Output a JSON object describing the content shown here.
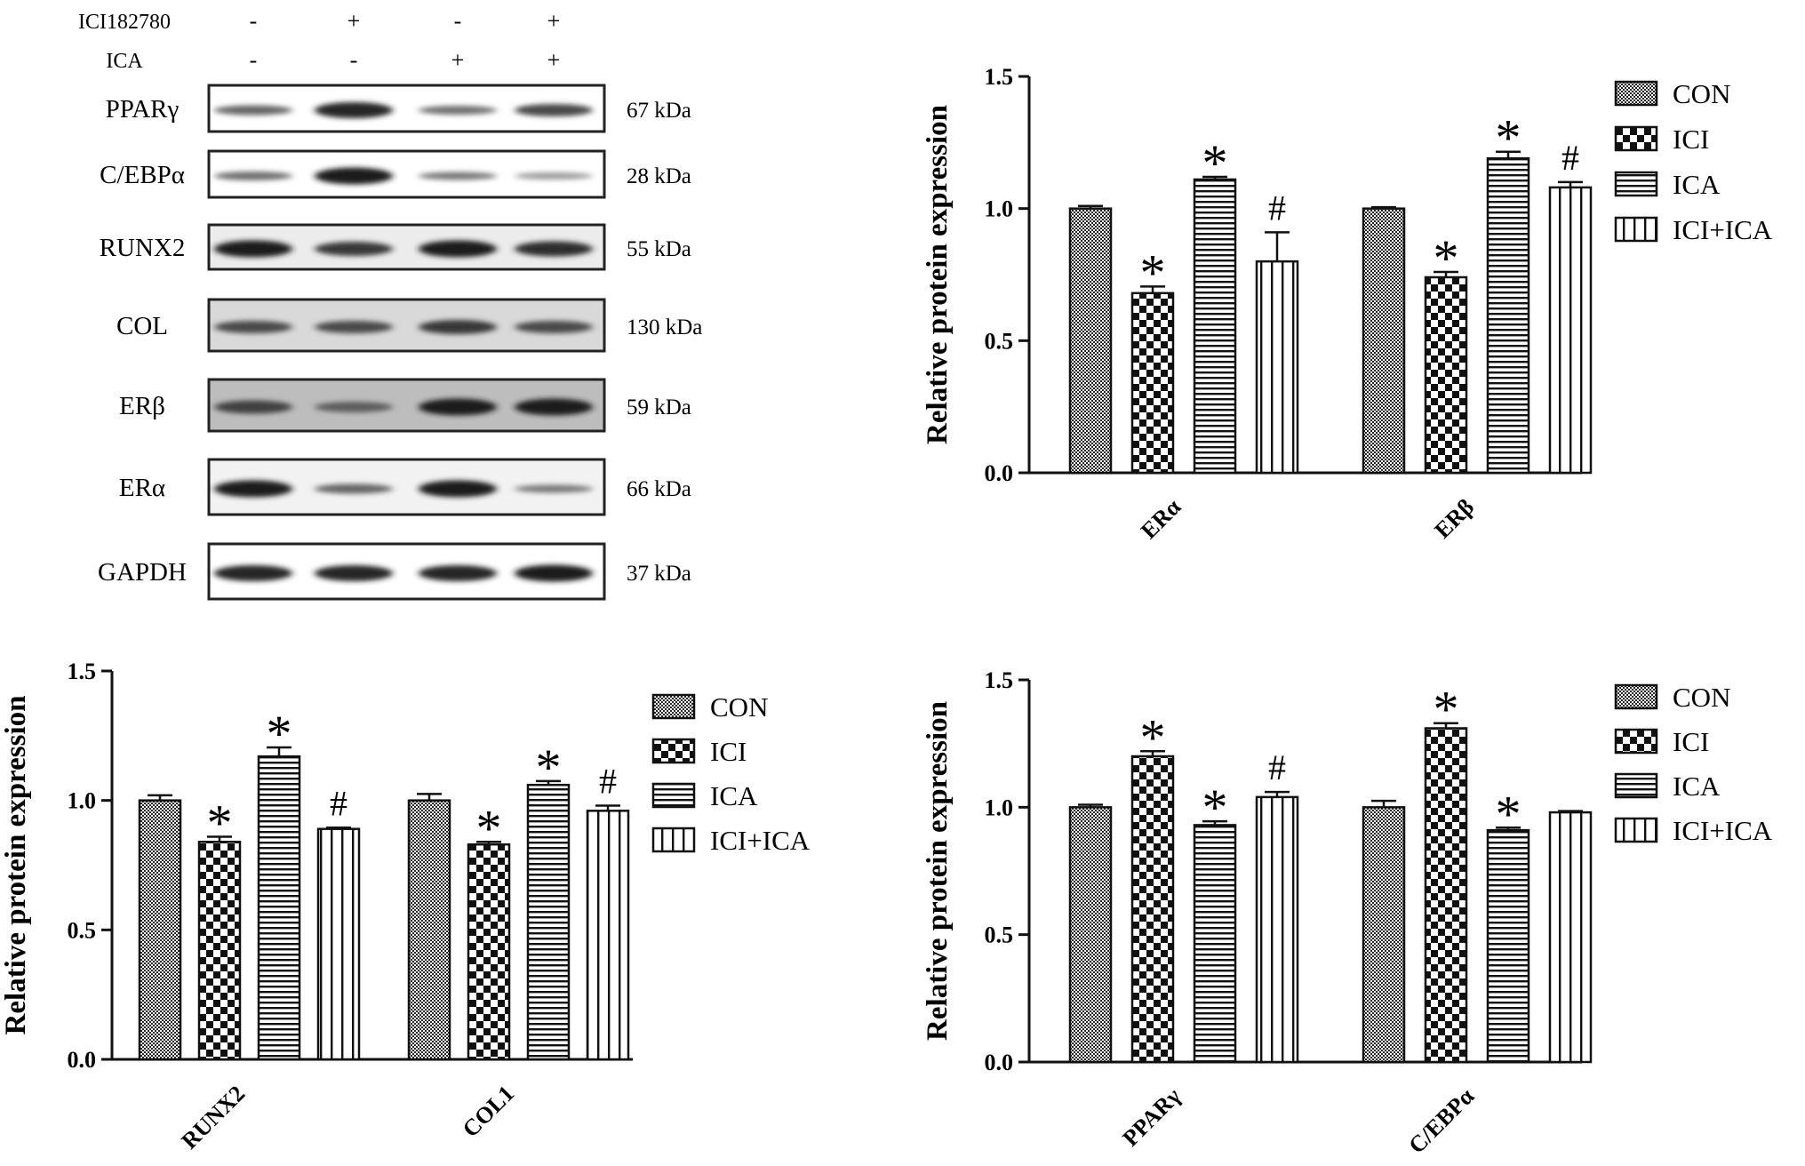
{
  "western_blot": {
    "treatments": [
      {
        "name": "ICI182780",
        "signs": [
          "-",
          "+",
          "-",
          "+"
        ]
      },
      {
        "name": "ICA",
        "signs": [
          "-",
          "-",
          "+",
          "+"
        ]
      }
    ],
    "blots": [
      {
        "protein": "PPARγ",
        "size": "67 kDa",
        "bands": [
          0.55,
          0.9,
          0.5,
          0.7
        ]
      },
      {
        "protein": "C/EBPα",
        "size": "28 kDa",
        "bands": [
          0.5,
          0.95,
          0.45,
          0.25
        ]
      },
      {
        "protein": "RUNX2",
        "size": "55 kDa",
        "bands": [
          0.95,
          0.8,
          0.95,
          0.85
        ]
      },
      {
        "protein": "COL",
        "size": "130 kDa",
        "bands": [
          0.7,
          0.7,
          0.8,
          0.7
        ]
      },
      {
        "protein": "ERβ",
        "size": "59 kDa",
        "bands": [
          0.75,
          0.6,
          0.95,
          0.95
        ]
      },
      {
        "protein": "ERα",
        "size": "66 kDa",
        "bands": [
          0.95,
          0.55,
          0.95,
          0.45
        ]
      },
      {
        "protein": "GAPDH",
        "size": "37 kDa",
        "bands": [
          0.9,
          0.9,
          0.9,
          0.95
        ]
      }
    ]
  },
  "chart_data": [
    {
      "type": "bar",
      "id": "er",
      "categories": [
        "ERα",
        "ERβ"
      ],
      "series": [
        {
          "name": "CON",
          "values": [
            1.0,
            1.0
          ],
          "errors": [
            0.01,
            0.005
          ]
        },
        {
          "name": "ICI",
          "values": [
            0.68,
            0.74
          ],
          "errors": [
            0.025,
            0.02
          ]
        },
        {
          "name": "ICA",
          "values": [
            1.11,
            1.19
          ],
          "errors": [
            0.01,
            0.025
          ]
        },
        {
          "name": "ICI+ICA",
          "values": [
            0.8,
            1.08
          ],
          "errors": [
            0.11,
            0.02
          ]
        }
      ],
      "annotations": [
        [
          "",
          "*",
          "*",
          "#"
        ],
        [
          "",
          "*",
          "*",
          "#"
        ]
      ],
      "ylabel": "Relative protein expression",
      "ylim": [
        0,
        1.5
      ],
      "yticks": [
        "0.0",
        "0.5",
        "1.0",
        "1.5"
      ],
      "legend": "top-right"
    },
    {
      "type": "bar",
      "id": "runx",
      "categories": [
        "RUNX2",
        "COL1"
      ],
      "series": [
        {
          "name": "CON",
          "values": [
            1.0,
            1.0
          ],
          "errors": [
            0.02,
            0.025
          ]
        },
        {
          "name": "ICI",
          "values": [
            0.84,
            0.83
          ],
          "errors": [
            0.02,
            0.01
          ]
        },
        {
          "name": "ICA",
          "values": [
            1.17,
            1.06
          ],
          "errors": [
            0.035,
            0.015
          ]
        },
        {
          "name": "ICI+ICA",
          "values": [
            0.89,
            0.96
          ],
          "errors": [
            0.005,
            0.02
          ]
        }
      ],
      "annotations": [
        [
          "",
          "*",
          "*",
          "#"
        ],
        [
          "",
          "*",
          "*",
          "#"
        ]
      ],
      "ylabel": "Relative protein expression",
      "ylim": [
        0,
        1.5
      ],
      "yticks": [
        "0.0",
        "0.5",
        "1.0",
        "1.5"
      ],
      "legend": "top-right"
    },
    {
      "type": "bar",
      "id": "ppar",
      "categories": [
        "PPARγ",
        "C/EBPα"
      ],
      "series": [
        {
          "name": "CON",
          "values": [
            1.0,
            1.0
          ],
          "errors": [
            0.01,
            0.025
          ]
        },
        {
          "name": "ICI",
          "values": [
            1.2,
            1.31
          ],
          "errors": [
            0.02,
            0.02
          ]
        },
        {
          "name": "ICA",
          "values": [
            0.93,
            0.91
          ],
          "errors": [
            0.015,
            0.01
          ]
        },
        {
          "name": "ICI+ICA",
          "values": [
            1.04,
            0.98
          ],
          "errors": [
            0.02,
            0.005
          ]
        }
      ],
      "annotations": [
        [
          "",
          "*",
          "*",
          "#"
        ],
        [
          "",
          "*",
          "*",
          ""
        ]
      ],
      "ylabel": "Relative protein expression",
      "ylim": [
        0,
        1.5
      ],
      "yticks": [
        "0.0",
        "0.5",
        "1.0",
        "1.5"
      ],
      "legend": "top-right"
    }
  ]
}
